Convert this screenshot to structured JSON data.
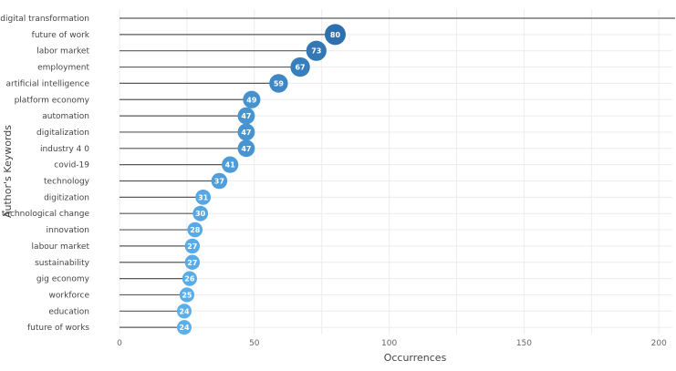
{
  "chart_data": {
    "type": "lollipop",
    "title": "",
    "xlabel": "Occurrences",
    "ylabel": "Author's Keywords",
    "xlim": [
      0,
      205
    ],
    "xticks": [
      0,
      50,
      100,
      150,
      200
    ],
    "grid": true,
    "legend": "none",
    "categories": [
      "digital transformation",
      "future of work",
      "labor market",
      "employment",
      "artificial intelligence",
      "platform economy",
      "automation",
      "digitalization",
      "industry 4 0",
      "covid-19",
      "technology",
      "digitization",
      "technological change",
      "innovation",
      "labour market",
      "sustainability",
      "gig economy",
      "workforce",
      "education",
      "future of works"
    ],
    "values": [
      206,
      80,
      73,
      67,
      59,
      49,
      47,
      47,
      47,
      41,
      37,
      31,
      30,
      28,
      27,
      27,
      26,
      25,
      24,
      24
    ],
    "value_labels": [
      "",
      "80",
      "73",
      "67",
      "59",
      "49",
      "47",
      "47",
      "47",
      "41",
      "37",
      "31",
      "30",
      "28",
      "27",
      "27",
      "26",
      "25",
      "24",
      "24"
    ],
    "colors": {
      "stem": "#5a5a5a",
      "marker_light": "#5aaeea",
      "marker_dark": "#2e6fad"
    }
  }
}
